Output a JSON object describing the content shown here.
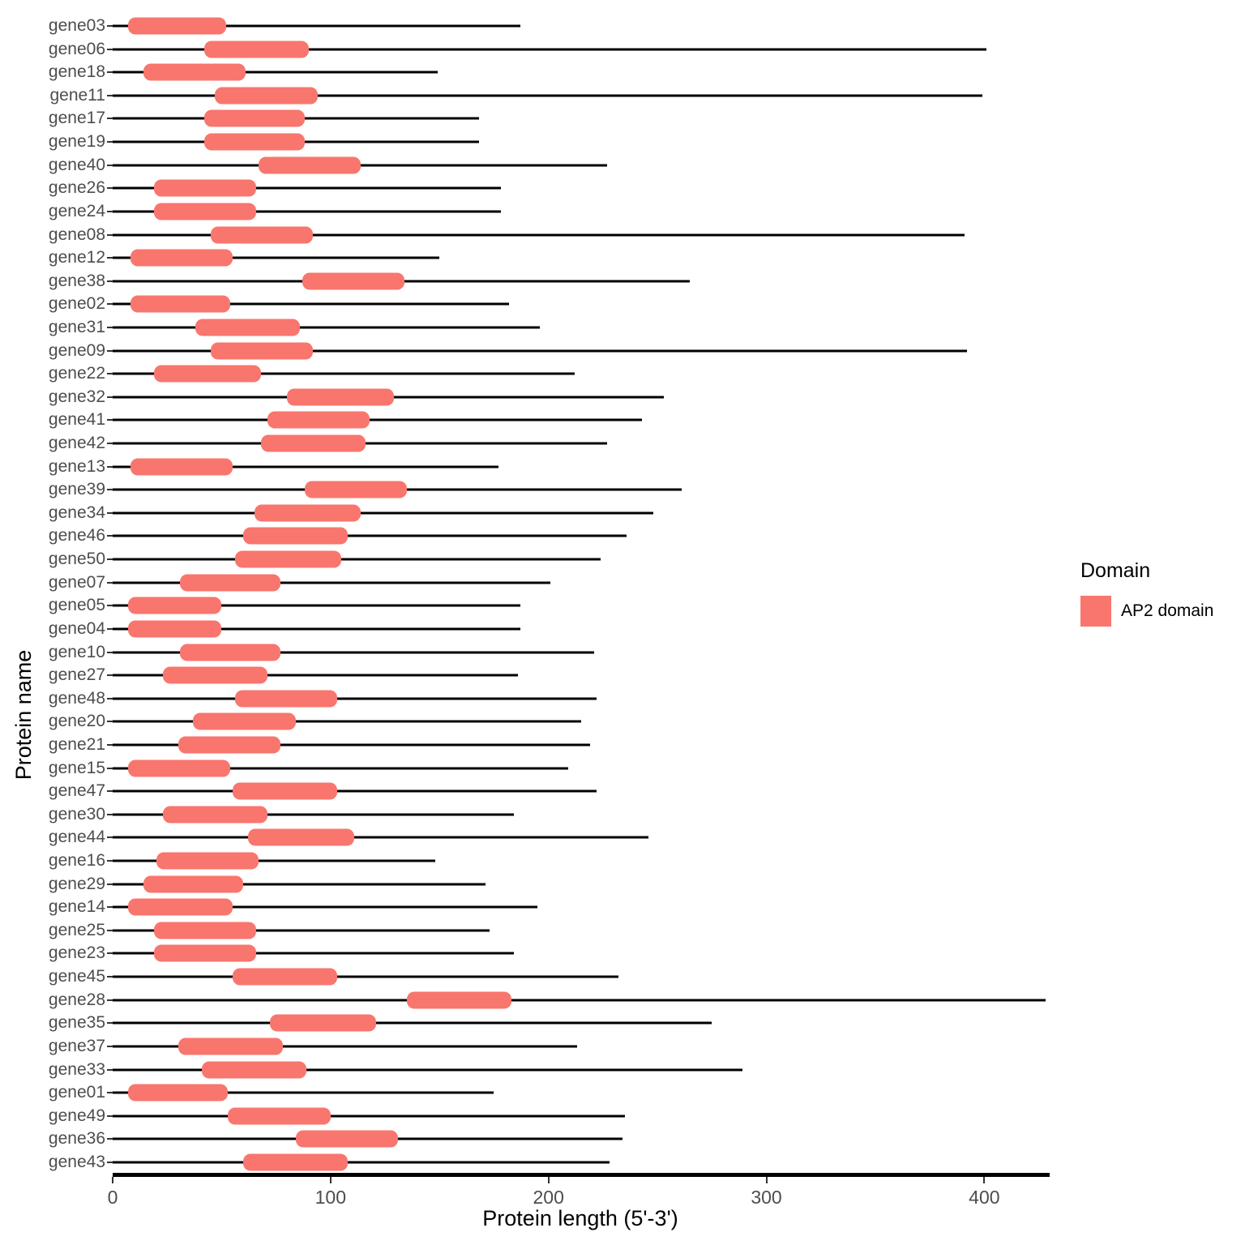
{
  "chart_data": {
    "type": "bar",
    "subtype": "protein-domain-map",
    "title": "",
    "xlabel": "Protein length (5'-3')",
    "ylabel": "Protein name",
    "x_ticks": [
      0,
      100,
      200,
      300,
      400
    ],
    "xlim": [
      0,
      430
    ],
    "grid": "off",
    "legend": {
      "title": "Domain",
      "position": "right",
      "items": [
        {
          "label": "AP2 domain",
          "color": "#F8766D"
        }
      ]
    },
    "colors": {
      "domain_fill": "#F8766D",
      "chain_line": "#000000",
      "axis_text": "#4d4d4d",
      "axis_title": "#000000",
      "axis_line": "#000000"
    },
    "proteins": [
      {
        "name": "gene03",
        "length": 187,
        "domain": {
          "label": "AP2 domain",
          "begin": 7,
          "end": 52
        }
      },
      {
        "name": "gene06",
        "length": 401,
        "domain": {
          "label": "AP2 domain",
          "begin": 42,
          "end": 90
        }
      },
      {
        "name": "gene18",
        "length": 149,
        "domain": {
          "label": "AP2 domain",
          "begin": 14,
          "end": 61
        }
      },
      {
        "name": "gene11",
        "length": 399,
        "domain": {
          "label": "AP2 domain",
          "begin": 47,
          "end": 94
        }
      },
      {
        "name": "gene17",
        "length": 168,
        "domain": {
          "label": "AP2 domain",
          "begin": 42,
          "end": 88
        }
      },
      {
        "name": "gene19",
        "length": 168,
        "domain": {
          "label": "AP2 domain",
          "begin": 42,
          "end": 88
        }
      },
      {
        "name": "gene40",
        "length": 227,
        "domain": {
          "label": "AP2 domain",
          "begin": 67,
          "end": 114
        }
      },
      {
        "name": "gene26",
        "length": 178,
        "domain": {
          "label": "AP2 domain",
          "begin": 19,
          "end": 66
        }
      },
      {
        "name": "gene24",
        "length": 178,
        "domain": {
          "label": "AP2 domain",
          "begin": 19,
          "end": 66
        }
      },
      {
        "name": "gene08",
        "length": 391,
        "domain": {
          "label": "AP2 domain",
          "begin": 45,
          "end": 92
        }
      },
      {
        "name": "gene12",
        "length": 150,
        "domain": {
          "label": "AP2 domain",
          "begin": 8,
          "end": 55
        }
      },
      {
        "name": "gene38",
        "length": 265,
        "domain": {
          "label": "AP2 domain",
          "begin": 87,
          "end": 134
        }
      },
      {
        "name": "gene02",
        "length": 182,
        "domain": {
          "label": "AP2 domain",
          "begin": 8,
          "end": 54
        }
      },
      {
        "name": "gene31",
        "length": 196,
        "domain": {
          "label": "AP2 domain",
          "begin": 38,
          "end": 86
        }
      },
      {
        "name": "gene09",
        "length": 392,
        "domain": {
          "label": "AP2 domain",
          "begin": 45,
          "end": 92
        }
      },
      {
        "name": "gene22",
        "length": 212,
        "domain": {
          "label": "AP2 domain",
          "begin": 19,
          "end": 68
        }
      },
      {
        "name": "gene32",
        "length": 253,
        "domain": {
          "label": "AP2 domain",
          "begin": 80,
          "end": 129
        }
      },
      {
        "name": "gene41",
        "length": 243,
        "domain": {
          "label": "AP2 domain",
          "begin": 71,
          "end": 118
        }
      },
      {
        "name": "gene42",
        "length": 227,
        "domain": {
          "label": "AP2 domain",
          "begin": 68,
          "end": 116
        }
      },
      {
        "name": "gene13",
        "length": 177,
        "domain": {
          "label": "AP2 domain",
          "begin": 8,
          "end": 55
        }
      },
      {
        "name": "gene39",
        "length": 261,
        "domain": {
          "label": "AP2 domain",
          "begin": 88,
          "end": 135
        }
      },
      {
        "name": "gene34",
        "length": 248,
        "domain": {
          "label": "AP2 domain",
          "begin": 65,
          "end": 114
        }
      },
      {
        "name": "gene46",
        "length": 236,
        "domain": {
          "label": "AP2 domain",
          "begin": 60,
          "end": 108
        }
      },
      {
        "name": "gene50",
        "length": 224,
        "domain": {
          "label": "AP2 domain",
          "begin": 56,
          "end": 105
        }
      },
      {
        "name": "gene07",
        "length": 201,
        "domain": {
          "label": "AP2 domain",
          "begin": 31,
          "end": 77
        }
      },
      {
        "name": "gene05",
        "length": 187,
        "domain": {
          "label": "AP2 domain",
          "begin": 7,
          "end": 50
        }
      },
      {
        "name": "gene04",
        "length": 187,
        "domain": {
          "label": "AP2 domain",
          "begin": 7,
          "end": 50
        }
      },
      {
        "name": "gene10",
        "length": 221,
        "domain": {
          "label": "AP2 domain",
          "begin": 31,
          "end": 77
        }
      },
      {
        "name": "gene27",
        "length": 186,
        "domain": {
          "label": "AP2 domain",
          "begin": 23,
          "end": 71
        }
      },
      {
        "name": "gene48",
        "length": 222,
        "domain": {
          "label": "AP2 domain",
          "begin": 56,
          "end": 103
        }
      },
      {
        "name": "gene20",
        "length": 215,
        "domain": {
          "label": "AP2 domain",
          "begin": 37,
          "end": 84
        }
      },
      {
        "name": "gene21",
        "length": 219,
        "domain": {
          "label": "AP2 domain",
          "begin": 30,
          "end": 77
        }
      },
      {
        "name": "gene15",
        "length": 209,
        "domain": {
          "label": "AP2 domain",
          "begin": 7,
          "end": 54
        }
      },
      {
        "name": "gene47",
        "length": 222,
        "domain": {
          "label": "AP2 domain",
          "begin": 55,
          "end": 103
        }
      },
      {
        "name": "gene30",
        "length": 184,
        "domain": {
          "label": "AP2 domain",
          "begin": 23,
          "end": 71
        }
      },
      {
        "name": "gene44",
        "length": 246,
        "domain": {
          "label": "AP2 domain",
          "begin": 62,
          "end": 111
        }
      },
      {
        "name": "gene16",
        "length": 148,
        "domain": {
          "label": "AP2 domain",
          "begin": 20,
          "end": 67
        }
      },
      {
        "name": "gene29",
        "length": 171,
        "domain": {
          "label": "AP2 domain",
          "begin": 14,
          "end": 60
        }
      },
      {
        "name": "gene14",
        "length": 195,
        "domain": {
          "label": "AP2 domain",
          "begin": 7,
          "end": 55
        }
      },
      {
        "name": "gene25",
        "length": 173,
        "domain": {
          "label": "AP2 domain",
          "begin": 19,
          "end": 66
        }
      },
      {
        "name": "gene23",
        "length": 184,
        "domain": {
          "label": "AP2 domain",
          "begin": 19,
          "end": 66
        }
      },
      {
        "name": "gene45",
        "length": 232,
        "domain": {
          "label": "AP2 domain",
          "begin": 55,
          "end": 103
        }
      },
      {
        "name": "gene28",
        "length": 428,
        "domain": {
          "label": "AP2 domain",
          "begin": 135,
          "end": 183
        }
      },
      {
        "name": "gene35",
        "length": 275,
        "domain": {
          "label": "AP2 domain",
          "begin": 72,
          "end": 121
        }
      },
      {
        "name": "gene37",
        "length": 213,
        "domain": {
          "label": "AP2 domain",
          "begin": 30,
          "end": 78
        }
      },
      {
        "name": "gene33",
        "length": 289,
        "domain": {
          "label": "AP2 domain",
          "begin": 41,
          "end": 89
        }
      },
      {
        "name": "gene01",
        "length": 175,
        "domain": {
          "label": "AP2 domain",
          "begin": 7,
          "end": 53
        }
      },
      {
        "name": "gene49",
        "length": 235,
        "domain": {
          "label": "AP2 domain",
          "begin": 53,
          "end": 100
        }
      },
      {
        "name": "gene36",
        "length": 234,
        "domain": {
          "label": "AP2 domain",
          "begin": 84,
          "end": 131
        }
      },
      {
        "name": "gene43",
        "length": 228,
        "domain": {
          "label": "AP2 domain",
          "begin": 60,
          "end": 108
        }
      }
    ]
  }
}
